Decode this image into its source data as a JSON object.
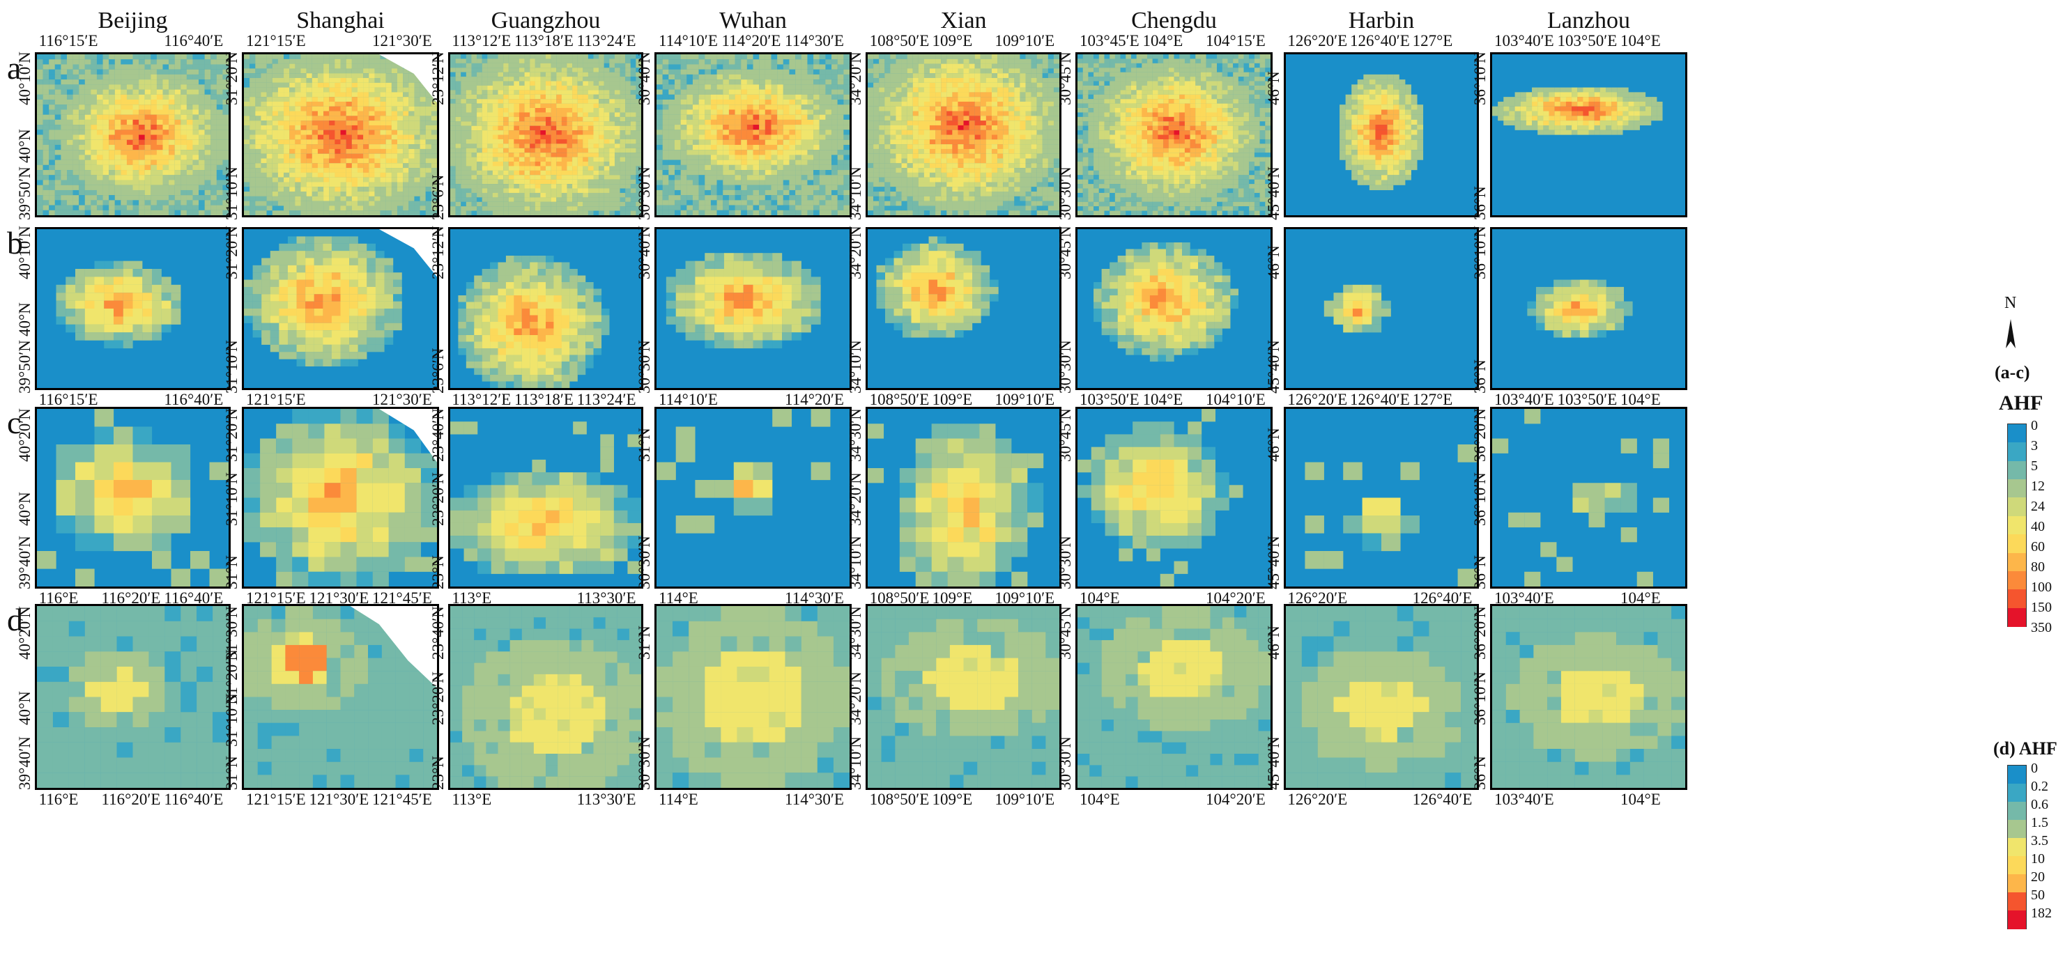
{
  "cities": [
    "Beijing",
    "Shanghai",
    "Guangzhou",
    "Wuhan",
    "Xian",
    "Chengdu",
    "Harbin",
    "Lanzhou"
  ],
  "row_labels": [
    "a",
    "b",
    "c",
    "d"
  ],
  "ticks": {
    "top": [
      [
        "116°15′E",
        "116°40′E"
      ],
      [
        "121°15′E",
        "121°30′E"
      ],
      [
        "113°12′E",
        "113°18′E",
        "113°24′E"
      ],
      [
        "114°10′E",
        "114°20′E",
        "114°30′E"
      ],
      [
        "108°50′E",
        "109°E",
        "109°10′E"
      ],
      [
        "103°45′E",
        "104°E",
        "104°15′E"
      ],
      [
        "126°20′E",
        "126°40′E",
        "127°E"
      ],
      [
        "103°40′E",
        "103°50′E",
        "104°E"
      ]
    ],
    "b_bottom": [
      [
        "116°15′E",
        "116°40′E"
      ],
      [
        "121°15′E",
        "121°30′E"
      ],
      [
        "113°12′E",
        "113°18′E",
        "113°24′E"
      ],
      [
        "114°10′E",
        "114°20′E"
      ],
      [
        "108°50′E",
        "109°E",
        "109°10′E"
      ],
      [
        "103°50′E",
        "104°E",
        "104°10′E"
      ],
      [
        "126°20′E",
        "126°40′E",
        "127°E"
      ],
      [
        "103°40′E",
        "103°50′E",
        "104°E"
      ]
    ],
    "c_bottom": [
      [
        "116°E",
        "116°20′E",
        "116°40′E"
      ],
      [
        "121°15′E",
        "121°30′E",
        "121°45′E"
      ],
      [
        "113°E",
        "113°30′E"
      ],
      [
        "114°E",
        "114°30′E"
      ],
      [
        "108°50′E",
        "109°E",
        "109°10′E"
      ],
      [
        "104°E",
        "104°20′E"
      ],
      [
        "126°20′E",
        "126°40′E"
      ],
      [
        "103°40′E",
        "104°E"
      ]
    ],
    "d_bottom": [
      [
        "116°E",
        "116°20′E",
        "116°40′E"
      ],
      [
        "121°15′E",
        "121°30′E",
        "121°45′E"
      ],
      [
        "113°E",
        "113°30′E"
      ],
      [
        "114°E",
        "114°30′E"
      ],
      [
        "108°50′E",
        "109°E",
        "109°10′E"
      ],
      [
        "104°E",
        "104°20′E"
      ],
      [
        "126°20′E",
        "126°40′E"
      ],
      [
        "103°40′E",
        "104°E"
      ]
    ],
    "left_a": [
      [
        "40°10′N",
        "40°N",
        "39°50′N"
      ],
      [
        "31°20′N",
        "31°10′N"
      ],
      [
        "23°12′N",
        "23°6′N"
      ],
      [
        "30°40′N",
        "30°30′N"
      ],
      [
        "34°20′N",
        "34°10′N"
      ],
      [
        "30°45′N",
        "30°30′N"
      ],
      [
        "46°N",
        "45°40′N"
      ],
      [
        "36°10′N",
        "36°N"
      ]
    ],
    "left_b": [
      [
        "40°10′N",
        "40°N",
        "39°50′N"
      ],
      [
        "31°20′N",
        "31°10′N"
      ],
      [
        "23°12′N",
        "23°6′N"
      ],
      [
        "30°40′N",
        "30°30′N"
      ],
      [
        "34°20′N",
        "34°10′N"
      ],
      [
        "30°45′N",
        "30°30′N"
      ],
      [
        "46°N",
        "45°40′N"
      ],
      [
        "36°10′N",
        "36°N"
      ]
    ],
    "left_c": [
      [
        "40°20′N",
        "40°N",
        "39°40′N"
      ],
      [
        "31°20′N",
        "31°10′N",
        "31°N"
      ],
      [
        "23°40′N",
        "23°20′N",
        "23°N"
      ],
      [
        "31°N",
        "30°30′N"
      ],
      [
        "34°30′N",
        "34°20′N",
        "34°10′N"
      ],
      [
        "30°45′N",
        "30°30′N"
      ],
      [
        "46°N",
        "45°40′N"
      ],
      [
        "36°20′N",
        "36°10′N",
        "36°N"
      ]
    ],
    "left_d": [
      [
        "40°20′N",
        "40°N",
        "39°40′N"
      ],
      [
        "31°30′N",
        "31°20′N",
        "31°10′N",
        "31°N"
      ],
      [
        "23°40′N",
        "23°20′N",
        "23°N"
      ],
      [
        "31°N",
        "30°30′N"
      ],
      [
        "34°30′N",
        "34°20′N",
        "34°10′N"
      ],
      [
        "30°45′N",
        "30°30′N"
      ],
      [
        "46°N",
        "45°40′N"
      ],
      [
        "36°20′N",
        "36°10′N",
        "36°N"
      ]
    ]
  },
  "legend_ac": {
    "title": "(a-c)",
    "subtitle": "AHF",
    "north": "N",
    "values": [
      "0",
      "3",
      "5",
      "12",
      "24",
      "40",
      "60",
      "80",
      "100",
      "150",
      "350"
    ]
  },
  "legend_d": {
    "title": "(d) AHF",
    "values": [
      "0",
      "0.2",
      "0.6",
      "1.5",
      "3.5",
      "10",
      "20",
      "50",
      "182"
    ]
  },
  "palette": [
    "#1a8fc9",
    "#3aa7c4",
    "#75b9a9",
    "#a7c78f",
    "#cfd97a",
    "#f0e56c",
    "#fcd95a",
    "#fdb64a",
    "#fb8a3a",
    "#f5552e",
    "#e5132a"
  ]
}
